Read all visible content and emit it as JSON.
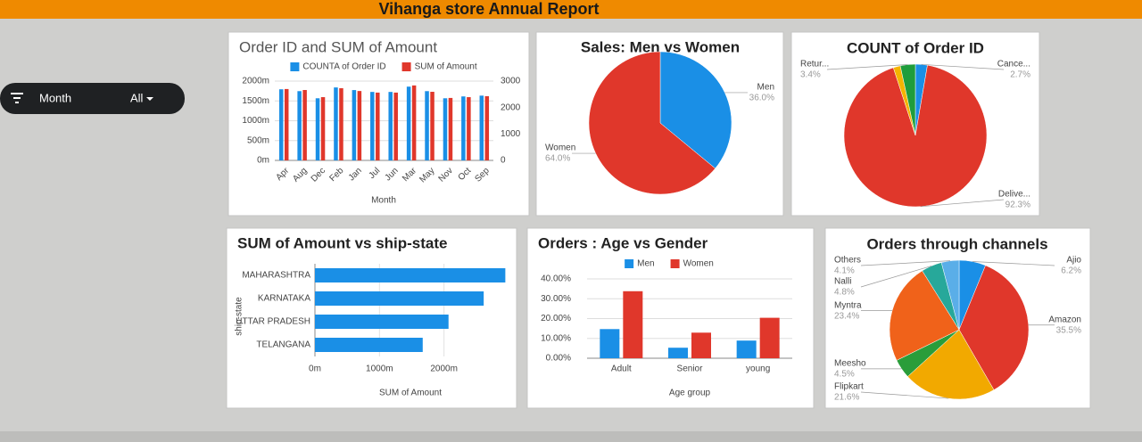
{
  "header": {
    "title": "Vihanga store Annual Report"
  },
  "filter": {
    "label": "Month",
    "value": "All"
  },
  "chart_data": [
    {
      "type": "bar",
      "title": "Order ID and SUM of Amount",
      "x_label": "Month",
      "categories": [
        "Apr",
        "Aug",
        "Dec",
        "Feb",
        "Jan",
        "Jul",
        "Jun",
        "Mar",
        "May",
        "Nov",
        "Oct",
        "Sep"
      ],
      "series": [
        {
          "name": "COUNTA of Order ID",
          "color": "#1a8fe6",
          "axis": "y2",
          "values": [
            2690,
            2620,
            2350,
            2760,
            2660,
            2590,
            2590,
            2790,
            2620,
            2350,
            2420,
            2450
          ]
        },
        {
          "name": "SUM of Amount",
          "color": "#e0372b",
          "values": [
            1800,
            1775,
            1595,
            1820,
            1750,
            1710,
            1710,
            1890,
            1730,
            1575,
            1595,
            1620
          ]
        }
      ],
      "ylim": [
        0,
        2000
      ],
      "yticks": [
        {
          "value": 0,
          "label": "0m"
        },
        {
          "value": 500,
          "label": "500m"
        },
        {
          "value": 1000,
          "label": "1000m"
        },
        {
          "value": 1500,
          "label": "1500m"
        },
        {
          "value": 2000,
          "label": "2000m"
        }
      ],
      "y2lim": [
        0,
        3000
      ],
      "y2ticks": [
        0,
        1000,
        2000,
        3000
      ],
      "grid": true,
      "legend": "top"
    },
    {
      "type": "pie",
      "title": "Sales: Men vs Women",
      "categories": [
        "Men",
        "Women"
      ],
      "values": [
        36,
        64
      ],
      "value_labels": [
        "36.0%",
        "64.0%"
      ],
      "colors": [
        "#1a8fe6",
        "#e0372b"
      ]
    },
    {
      "type": "pie",
      "title": "COUNT of Order ID",
      "categories": [
        "Cance...",
        "Delive...",
        null,
        "Retur..."
      ],
      "values": [
        2.7,
        92.3,
        1.6,
        3.4
      ],
      "value_labels": [
        "2.7%",
        "92.3%",
        null,
        "3.4%"
      ],
      "colors": [
        "#1a8fe6",
        "#e0372b",
        "#f4b400",
        "#1f9d3c"
      ]
    },
    {
      "type": "bar",
      "orientation": "horizontal",
      "title": "SUM of Amount vs ship-state",
      "x_label": "SUM of Amount",
      "y_label": "ship-state",
      "categories": [
        "MAHARASHTRA",
        "KARNATAKA",
        "UTTAR PRADESH",
        "TELANGANA"
      ],
      "values": [
        2950,
        2615,
        2070,
        1670
      ],
      "color": "#1a8fe6",
      "xlim": [
        0,
        3000
      ],
      "xticks": [
        {
          "value": 0,
          "label": "0m"
        },
        {
          "value": 1000,
          "label": "1000m"
        },
        {
          "value": 2000,
          "label": "2000m"
        }
      ],
      "grid": true
    },
    {
      "type": "bar",
      "title": "Orders : Age vs Gender",
      "x_label": "Age group",
      "categories": [
        "Adult",
        "Senior",
        "young"
      ],
      "series": [
        {
          "name": "Men",
          "color": "#1a8fe6",
          "values": [
            14.7,
            5.3,
            8.9
          ]
        },
        {
          "name": "Women",
          "color": "#e0372b",
          "values": [
            33.8,
            12.9,
            20.4
          ]
        }
      ],
      "ylim": [
        0,
        40
      ],
      "yticks": [
        {
          "value": 0,
          "label": "0.00%"
        },
        {
          "value": 10,
          "label": "10.00%"
        },
        {
          "value": 20,
          "label": "20.00%"
        },
        {
          "value": 30,
          "label": "30.00%"
        },
        {
          "value": 40,
          "label": "40.00%"
        }
      ],
      "grid": true,
      "legend": "top"
    },
    {
      "type": "pie",
      "title": "Orders through channels",
      "categories": [
        "Ajio",
        "Amazon",
        "Flipkart",
        "Meesho",
        "Myntra",
        "Nalli",
        "Others"
      ],
      "values": [
        6.2,
        35.5,
        21.6,
        4.5,
        23.4,
        4.8,
        4.1
      ],
      "value_labels": [
        "6.2%",
        "35.5%",
        "21.6%",
        "4.5%",
        "23.4%",
        "4.8%",
        "4.1%"
      ],
      "colors": [
        "#1a8fe6",
        "#e0372b",
        "#f2a900",
        "#2a9d3a",
        "#f0621a",
        "#27a89a",
        "#5aaee8"
      ]
    }
  ]
}
